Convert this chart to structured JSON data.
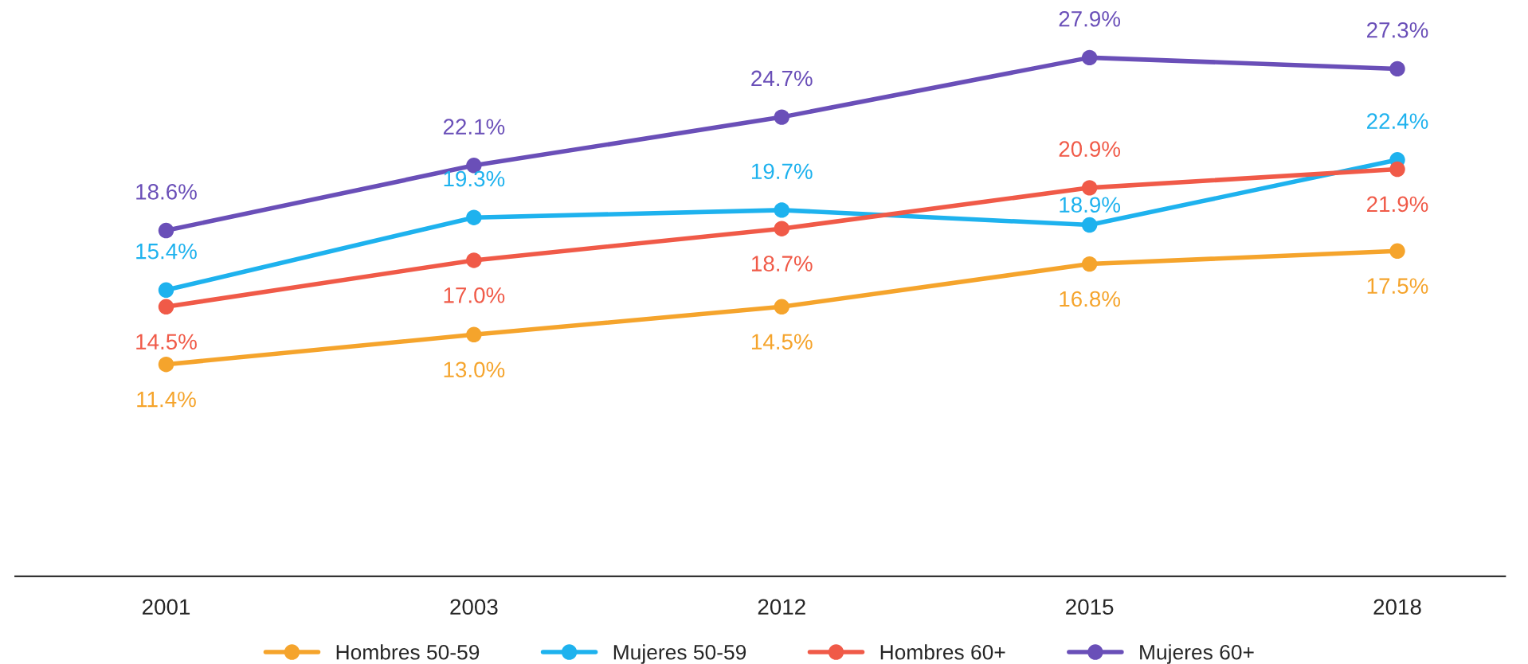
{
  "chart_data": {
    "type": "line",
    "categories": [
      "2001",
      "2003",
      "2012",
      "2015",
      "2018"
    ],
    "series": [
      {
        "name": "Hombres 50-59",
        "color": "#f5a42c",
        "values": [
          11.4,
          13.0,
          14.5,
          16.8,
          17.5
        ],
        "value_labels": [
          "11.4%",
          "13.0%",
          "14.5%",
          "16.8%",
          "17.5%"
        ]
      },
      {
        "name": "Mujeres 50-59",
        "color": "#1eb2ee",
        "values": [
          15.4,
          19.3,
          19.7,
          18.9,
          22.4
        ],
        "value_labels": [
          "15.4%",
          "19.3%",
          "19.7%",
          "18.9%",
          "22.4%"
        ]
      },
      {
        "name": "Hombres 60+",
        "color": "#f05a48",
        "values": [
          14.5,
          17.0,
          18.7,
          20.9,
          21.9
        ],
        "value_labels": [
          "14.5%",
          "17.0%",
          "18.7%",
          "20.9%",
          "21.9%"
        ]
      },
      {
        "name": "Mujeres 60+",
        "color": "#6a4fb8",
        "values": [
          18.6,
          22.1,
          24.7,
          27.9,
          27.3
        ],
        "value_labels": [
          "18.6%",
          "22.1%",
          "24.7%",
          "27.9%",
          "27.3%"
        ]
      }
    ],
    "marker": "circle",
    "line_style": "solid",
    "legend": "bottom",
    "grid": false,
    "tick_labels": "x"
  }
}
